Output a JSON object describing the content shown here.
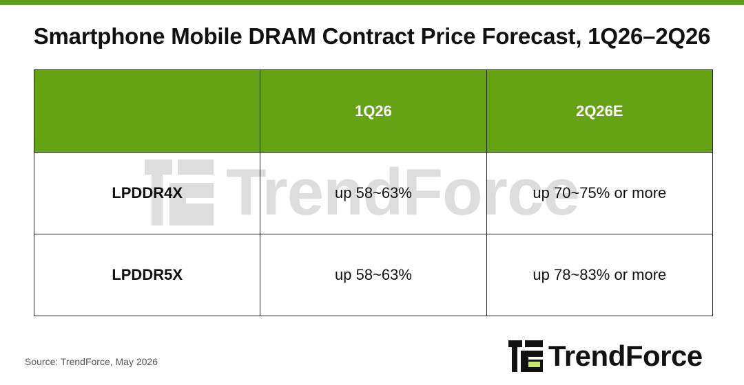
{
  "colors": {
    "brand_green": "#5e9e1a",
    "header_green": "#65a314",
    "logo_light_green": "#c8e86a",
    "text": "#111111",
    "source_text": "#555555"
  },
  "title": "Smartphone Mobile DRAM Contract Price Forecast, 1Q26–2Q26",
  "chart_data": {
    "type": "table",
    "title": "Smartphone Mobile DRAM Contract Price Forecast, 1Q26–2Q26",
    "columns": [
      "",
      "1Q26",
      "2Q26E"
    ],
    "rows": [
      {
        "label": "LPDDR4X",
        "values": [
          "up 58~63%",
          "up 70~75% or more"
        ]
      },
      {
        "label": "LPDDR5X",
        "values": [
          "up 58~63%",
          "up 78~83% or more"
        ]
      }
    ]
  },
  "source": "Source: TrendForce, May 2026",
  "logo": {
    "icon": "trendforce-logo-icon",
    "text": "TrendForce"
  },
  "watermark": {
    "icon": "trendforce-logo-icon",
    "text": "TrendForce"
  }
}
